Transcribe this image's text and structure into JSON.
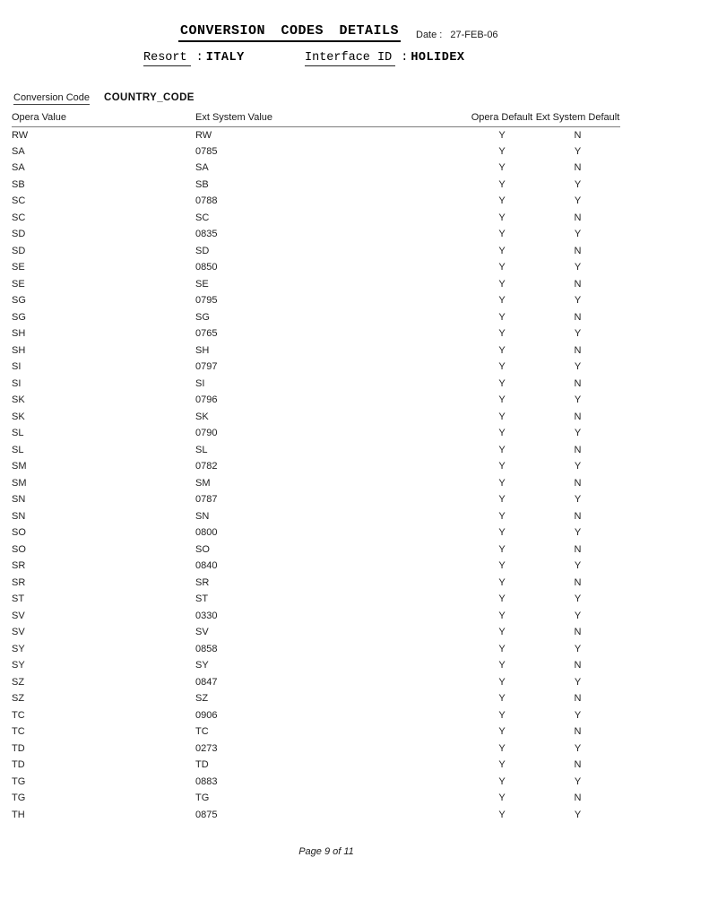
{
  "header": {
    "title": "CONVERSION CODES DETAILS",
    "date_label": "Date :",
    "date_value": "27-FEB-06",
    "resort_label": "Resort",
    "resort_separator": ":",
    "resort_value": "ITALY",
    "interface_label": "Interface ID",
    "interface_separator": ":",
    "interface_value": "HOLIDEX"
  },
  "conversion": {
    "label": "Conversion Code",
    "value": "COUNTRY_CODE"
  },
  "table": {
    "columns": [
      "Opera Value",
      "Ext System Value",
      "Opera Default",
      "Ext System Default"
    ],
    "column_keys": [
      "opera-value",
      "ext-system-value",
      "opera-default",
      "ext-system-default"
    ],
    "rows": [
      [
        "RW",
        "RW",
        "Y",
        "N"
      ],
      [
        "SA",
        "0785",
        "Y",
        "Y"
      ],
      [
        "SA",
        "SA",
        "Y",
        "N"
      ],
      [
        "SB",
        "SB",
        "Y",
        "Y"
      ],
      [
        "SC",
        "0788",
        "Y",
        "Y"
      ],
      [
        "SC",
        "SC",
        "Y",
        "N"
      ],
      [
        "SD",
        "0835",
        "Y",
        "Y"
      ],
      [
        "SD",
        "SD",
        "Y",
        "N"
      ],
      [
        "SE",
        "0850",
        "Y",
        "Y"
      ],
      [
        "SE",
        "SE",
        "Y",
        "N"
      ],
      [
        "SG",
        "0795",
        "Y",
        "Y"
      ],
      [
        "SG",
        "SG",
        "Y",
        "N"
      ],
      [
        "SH",
        "0765",
        "Y",
        "Y"
      ],
      [
        "SH",
        "SH",
        "Y",
        "N"
      ],
      [
        "SI",
        "0797",
        "Y",
        "Y"
      ],
      [
        "SI",
        "SI",
        "Y",
        "N"
      ],
      [
        "SK",
        "0796",
        "Y",
        "Y"
      ],
      [
        "SK",
        "SK",
        "Y",
        "N"
      ],
      [
        "SL",
        "0790",
        "Y",
        "Y"
      ],
      [
        "SL",
        "SL",
        "Y",
        "N"
      ],
      [
        "SM",
        "0782",
        "Y",
        "Y"
      ],
      [
        "SM",
        "SM",
        "Y",
        "N"
      ],
      [
        "SN",
        "0787",
        "Y",
        "Y"
      ],
      [
        "SN",
        "SN",
        "Y",
        "N"
      ],
      [
        "SO",
        "0800",
        "Y",
        "Y"
      ],
      [
        "SO",
        "SO",
        "Y",
        "N"
      ],
      [
        "SR",
        "0840",
        "Y",
        "Y"
      ],
      [
        "SR",
        "SR",
        "Y",
        "N"
      ],
      [
        "ST",
        "ST",
        "Y",
        "Y"
      ],
      [
        "SV",
        "0330",
        "Y",
        "Y"
      ],
      [
        "SV",
        "SV",
        "Y",
        "N"
      ],
      [
        "SY",
        "0858",
        "Y",
        "Y"
      ],
      [
        "SY",
        "SY",
        "Y",
        "N"
      ],
      [
        "SZ",
        "0847",
        "Y",
        "Y"
      ],
      [
        "SZ",
        "SZ",
        "Y",
        "N"
      ],
      [
        "TC",
        "0906",
        "Y",
        "Y"
      ],
      [
        "TC",
        "TC",
        "Y",
        "N"
      ],
      [
        "TD",
        "0273",
        "Y",
        "Y"
      ],
      [
        "TD",
        "TD",
        "Y",
        "N"
      ],
      [
        "TG",
        "0883",
        "Y",
        "Y"
      ],
      [
        "TG",
        "TG",
        "Y",
        "N"
      ],
      [
        "TH",
        "0875",
        "Y",
        "Y"
      ]
    ]
  },
  "footer": {
    "page_text": "Page 9 of 11"
  }
}
